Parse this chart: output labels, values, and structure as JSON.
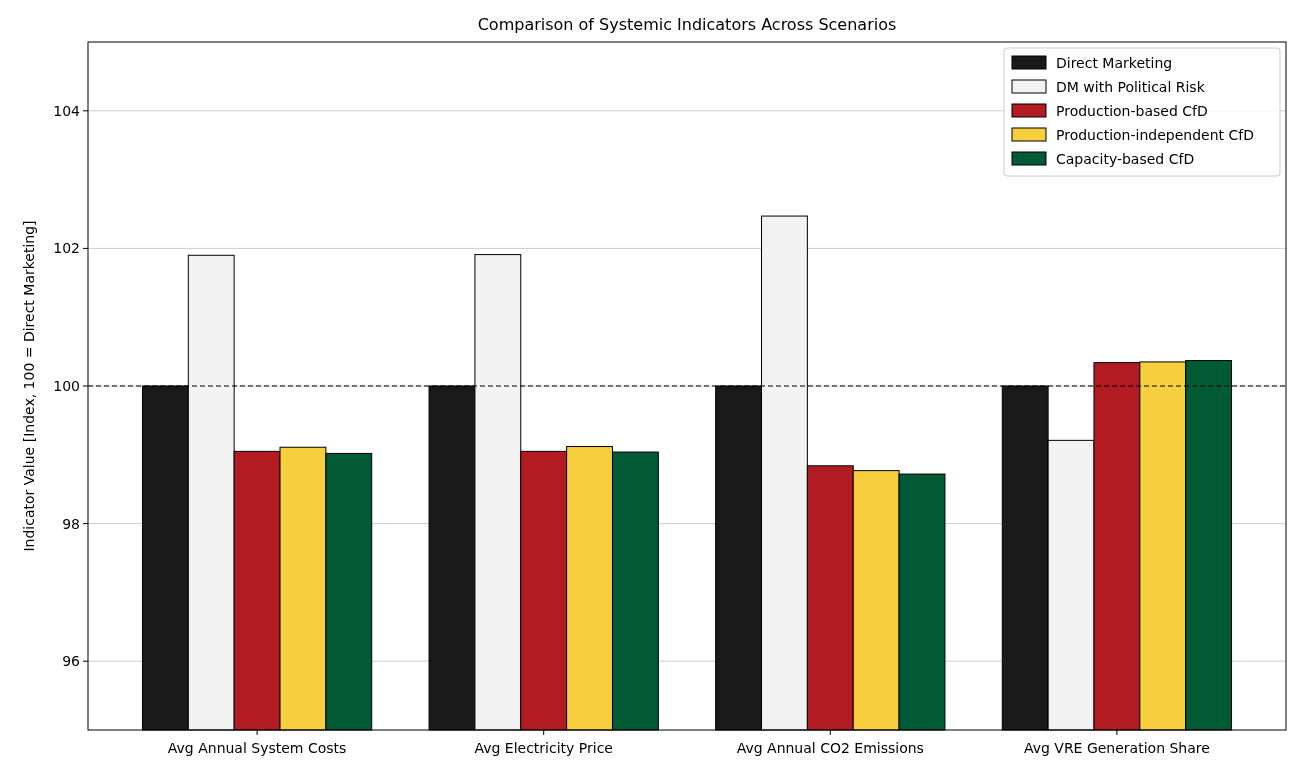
{
  "chart_data": {
    "type": "bar",
    "title": "Comparison of Systemic Indicators Across Scenarios",
    "ylabel": "Indicator Value [Index, 100 = Direct Marketing]",
    "categories": [
      "Avg Annual System Costs",
      "Avg Electricity Price",
      "Avg Annual CO2 Emissions",
      "Avg VRE Generation Share"
    ],
    "series": [
      {
        "name": "Direct Marketing",
        "color": "#1a1a1a",
        "values": [
          100,
          100,
          100,
          100
        ]
      },
      {
        "name": "DM with Political Risk",
        "color": "#f2f2f2",
        "values": [
          101.9,
          101.91,
          102.47,
          99.21
        ]
      },
      {
        "name": "Production-based CfD",
        "color": "#b31b23",
        "values": [
          99.05,
          99.05,
          98.84,
          100.34
        ]
      },
      {
        "name": "Production-independent CfD",
        "color": "#f7ce3e",
        "values": [
          99.11,
          99.12,
          98.77,
          100.35
        ]
      },
      {
        "name": "Capacity-based CfD",
        "color": "#005a36",
        "values": [
          99.02,
          99.04,
          98.72,
          100.37
        ]
      }
    ],
    "ylim": [
      95,
      105
    ],
    "yticks": [
      96,
      98,
      100,
      102,
      104
    ],
    "grid": "y",
    "legend": "top right",
    "ref_lines": [
      {
        "axis": "y",
        "value": 100,
        "color": "#000000",
        "line_style": "dashed"
      }
    ]
  }
}
